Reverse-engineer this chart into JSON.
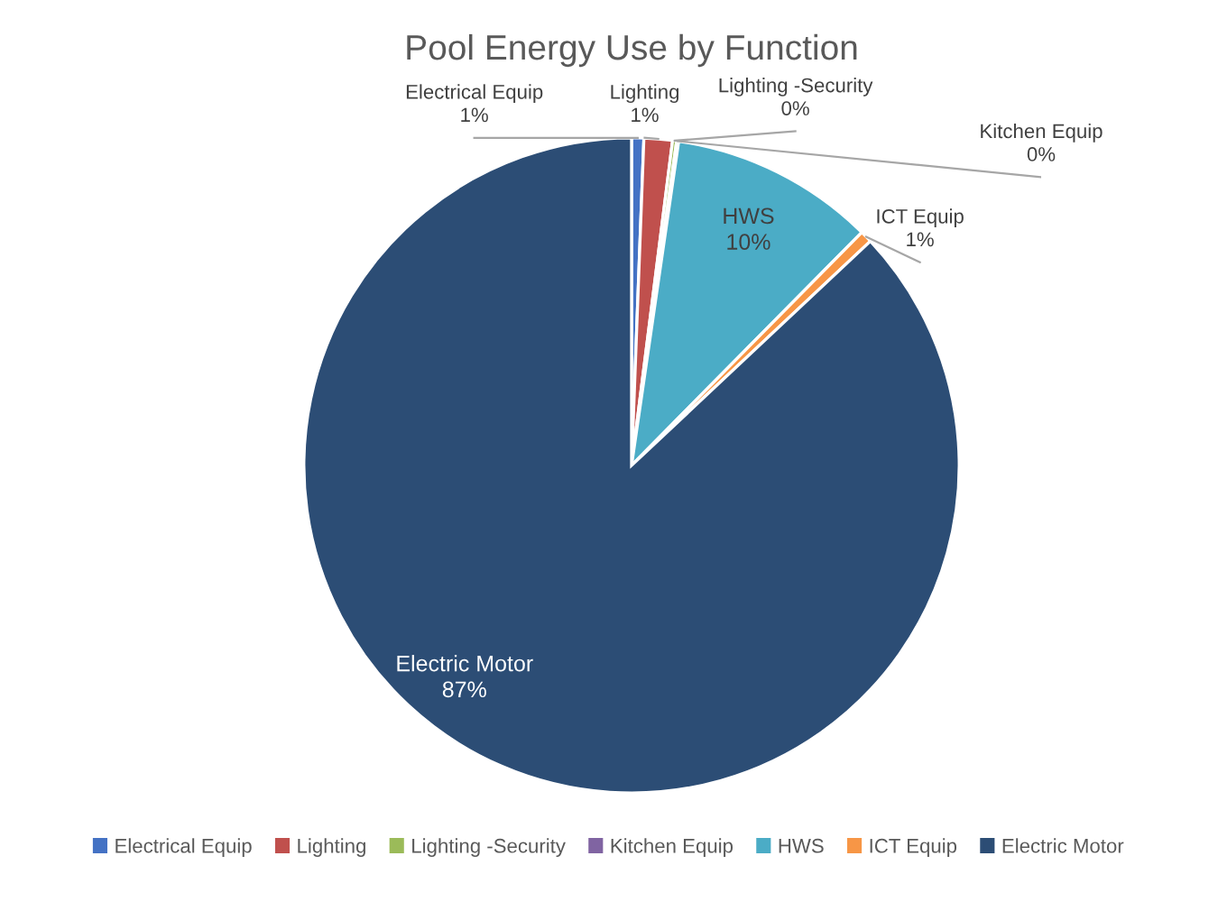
{
  "chart_data": {
    "type": "pie",
    "title": "Pool Energy Use by Function",
    "categories": [
      "Electrical Equip",
      "Lighting",
      "Lighting -Security",
      "Kitchen Equip",
      "HWS",
      "ICT Equip",
      "Electric Motor"
    ],
    "values": [
      0.6,
      1.4,
      0.2,
      0.1,
      10.1,
      0.6,
      87.0
    ],
    "value_labels": [
      "1%",
      "1%",
      "0%",
      "0%",
      "10%",
      "1%",
      "87%"
    ],
    "colors": [
      "#4472c4",
      "#c0504d",
      "#9bbb59",
      "#8064a2",
      "#4bacc6",
      "#f79646",
      "#2c4d75"
    ],
    "legend": "bottom"
  }
}
